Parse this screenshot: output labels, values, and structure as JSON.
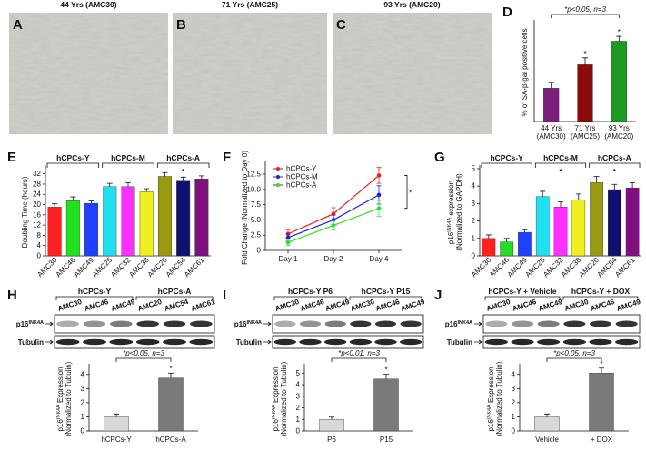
{
  "micrographs": [
    {
      "letter": "A",
      "title": "44 Yrs (AMC30)"
    },
    {
      "letter": "B",
      "title": "71 Yrs (AMC25)"
    },
    {
      "letter": "C",
      "title": "93 Yrs (AMC20)"
    }
  ],
  "chart_data": [
    {
      "panel": "D",
      "type": "bar",
      "ylabel": [
        [
          "% of SA-β-gal positive cells"
        ]
      ],
      "annotation": "*p<0.05, n=3",
      "categories": [
        [
          "44 Yrs",
          "(AMC30)"
        ],
        [
          "71 Yrs",
          "(AMC25)"
        ],
        [
          "93 Yrs",
          "(AMC20)"
        ]
      ],
      "values": [
        17,
        29,
        41
      ],
      "errors": [
        3,
        3.5,
        2.5
      ],
      "colors": [
        "#7a1f7a",
        "#8b0a0a",
        "#1e9a1e"
      ],
      "stars": [
        null,
        "*",
        "*"
      ],
      "ylim": [
        0,
        50
      ]
    },
    {
      "panel": "E",
      "type": "bar",
      "ylabel": [
        [
          "Doubling Time (hours)"
        ]
      ],
      "ylim": [
        0,
        34
      ],
      "yticks": [
        0,
        4,
        8,
        12,
        16,
        20,
        24,
        28,
        32
      ],
      "xtick_rotation": -45,
      "groups": [
        {
          "name": "hCPCs-Y",
          "categories": [
            "AMC30",
            "AMC46",
            "AMC49"
          ],
          "values": [
            19,
            21.5,
            20.5
          ],
          "errors": [
            1.3,
            1.5,
            1
          ],
          "colors": [
            "#ff2020",
            "#20e020",
            "#2040ff"
          ]
        },
        {
          "name": "hCPCs-M",
          "categories": [
            "AMC25",
            "AMC32",
            "AMC38"
          ],
          "values": [
            27,
            27,
            25
          ],
          "errors": [
            1.3,
            1.5,
            1.2
          ],
          "colors": [
            "#20e0f0",
            "#ff30ff",
            "#f0f020"
          ]
        },
        {
          "name": "hCPCs-A",
          "mark": "*",
          "categories": [
            "AMC20",
            "AMC54",
            "AMC61"
          ],
          "values": [
            31,
            29.5,
            30
          ],
          "errors": [
            1.5,
            1.2,
            1.2
          ],
          "colors": [
            "#9a9a10",
            "#101070",
            "#801080"
          ]
        }
      ]
    },
    {
      "panel": "F",
      "type": "line",
      "ylabel": [
        [
          "Fold Change (Normalized to Day 0)"
        ]
      ],
      "categories": [
        "Day 1",
        "Day 2",
        "Day 4"
      ],
      "ylim": [
        0,
        14
      ],
      "yticks": [
        0,
        2.5,
        {
          "value": 5,
          "label": "5.0"
        },
        {
          "value": 7.5,
          "label": "7.5"
        },
        {
          "value": 10,
          "label": "10.0"
        },
        {
          "value": 12.5,
          "label": "12.5"
        }
      ],
      "legend": "upper left",
      "bracket_mark": "*",
      "series": [
        {
          "name": "hCPCs-Y",
          "color": "#ee2020",
          "values": [
            2.7,
            6.0,
            12.3
          ],
          "errors": [
            0.7,
            1.0,
            1.3
          ]
        },
        {
          "name": "hCPCs-M",
          "color": "#2020dd",
          "values": [
            2.1,
            5.0,
            9.1
          ],
          "errors": [
            0.6,
            0.8,
            1.5
          ]
        },
        {
          "name": "hCPCs-A",
          "color": "#30dd30",
          "values": [
            1.3,
            4.1,
            6.9
          ],
          "errors": [
            0.5,
            0.8,
            1.3
          ]
        }
      ]
    },
    {
      "panel": "G",
      "type": "bar",
      "ylabel": [
        [
          "p16",
          {
            "sup": "INK4A"
          },
          " expression"
        ],
        [
          "(Normalized to GAPDH)"
        ]
      ],
      "ylim": [
        0,
        5
      ],
      "yticks": [
        0,
        1,
        2,
        3,
        4,
        5
      ],
      "xtick_rotation": -45,
      "groups": [
        {
          "name": "hCPCs-Y",
          "categories": [
            "AMC30",
            "AMC46",
            "AMC49"
          ],
          "values": [
            1.0,
            0.8,
            1.35
          ],
          "errors": [
            0.2,
            0.2,
            0.15
          ],
          "colors": [
            "#ff2020",
            "#20e020",
            "#2040ff"
          ]
        },
        {
          "name": "hCPCs-M",
          "mark": "*",
          "categories": [
            "AMC25",
            "AMC32",
            "AMC38"
          ],
          "values": [
            3.4,
            2.8,
            3.2
          ],
          "errors": [
            0.3,
            0.3,
            0.35
          ],
          "colors": [
            "#20e0f0",
            "#ff30ff",
            "#f0f020"
          ]
        },
        {
          "name": "hCPCs-A",
          "mark": "*",
          "categories": [
            "AMC20",
            "AMC54",
            "AMC61"
          ],
          "values": [
            4.2,
            3.8,
            3.9
          ],
          "errors": [
            0.35,
            0.3,
            0.3
          ],
          "colors": [
            "#9a9a10",
            "#101070",
            "#801080"
          ]
        }
      ]
    },
    {
      "panel": "H",
      "type": "bar",
      "ylabel": [
        [
          "p16",
          {
            "sup": "INK4A"
          },
          " Expression"
        ],
        [
          "(Normalized to Tubulin)"
        ]
      ],
      "annotation": "*p<0.05, n=3",
      "categories": [
        "hCPCs-Y",
        "hCPCs-A"
      ],
      "values": [
        1.0,
        3.75
      ],
      "errors": [
        0.2,
        0.35
      ],
      "colors": [
        "#d8d8d8",
        "#7a7a7a"
      ],
      "stars": [
        null,
        "*"
      ],
      "ylim": [
        0,
        4.5
      ],
      "yticks": [
        0,
        1,
        2,
        3,
        4
      ]
    },
    {
      "panel": "I",
      "type": "bar",
      "ylabel": [
        [
          "p16",
          {
            "sup": "INK4A"
          },
          " Expression"
        ],
        [
          "(Normalized to Tubulin)"
        ]
      ],
      "annotation": "*p<0.01, n=3",
      "categories": [
        "P6",
        "P15"
      ],
      "values": [
        1.0,
        4.5
      ],
      "errors": [
        0.2,
        0.4
      ],
      "colors": [
        "#d8d8d8",
        "#7a7a7a"
      ],
      "stars": [
        null,
        "*"
      ],
      "ylim": [
        0,
        5.5
      ],
      "yticks": [
        0,
        1,
        2,
        3,
        4,
        5
      ]
    },
    {
      "panel": "J",
      "type": "bar",
      "ylabel": [
        [
          "p16",
          {
            "sup": "INK4A"
          },
          " Expression"
        ],
        [
          "(Normalized to Tubulin)"
        ]
      ],
      "annotation": "*p<0.05, n=3",
      "categories": [
        "Vehicle",
        "+ DOX"
      ],
      "values": [
        1.0,
        4.1
      ],
      "errors": [
        0.2,
        0.35
      ],
      "colors": [
        "#d8d8d8",
        "#7a7a7a"
      ],
      "stars": [
        null,
        "*"
      ],
      "ylim": [
        0,
        4.5
      ],
      "yticks": [
        0,
        1,
        2,
        3,
        4
      ]
    }
  ],
  "blots": [
    {
      "groups": [
        {
          "name": "hCPCs-Y",
          "lanes": [
            "AMC30",
            "AMC46",
            "AMC49"
          ]
        },
        {
          "name": "hCPCs-A",
          "lanes": [
            "AMC20",
            "AMC54",
            "AMC61"
          ]
        }
      ],
      "rows": [
        [
          "p16",
          {
            "sup": "INK4A"
          }
        ],
        [
          "Tubulin"
        ]
      ]
    },
    {
      "groups": [
        {
          "name": "hCPCs-Y P6",
          "lanes": [
            "AMC30",
            "AMC46",
            "AMC49"
          ]
        },
        {
          "name": "hCPCs-Y P15",
          "lanes": [
            "AMC30",
            "AMC46",
            "AMC49"
          ]
        }
      ],
      "rows": [
        [
          "p16",
          {
            "sup": "INK4A"
          }
        ],
        [
          "Tubulin"
        ]
      ]
    },
    {
      "groups": [
        {
          "name": "hCPCs-Y + Vehicle",
          "lanes": [
            "AMC30",
            "AMC46",
            "AMC49"
          ]
        },
        {
          "name": "hCPCs-Y + DOX",
          "lanes": [
            "AMC30",
            "AMC46",
            "AMC49"
          ]
        }
      ],
      "rows": [
        [
          "p16",
          {
            "sup": "INK4A"
          }
        ],
        [
          "Tubulin"
        ]
      ]
    }
  ]
}
